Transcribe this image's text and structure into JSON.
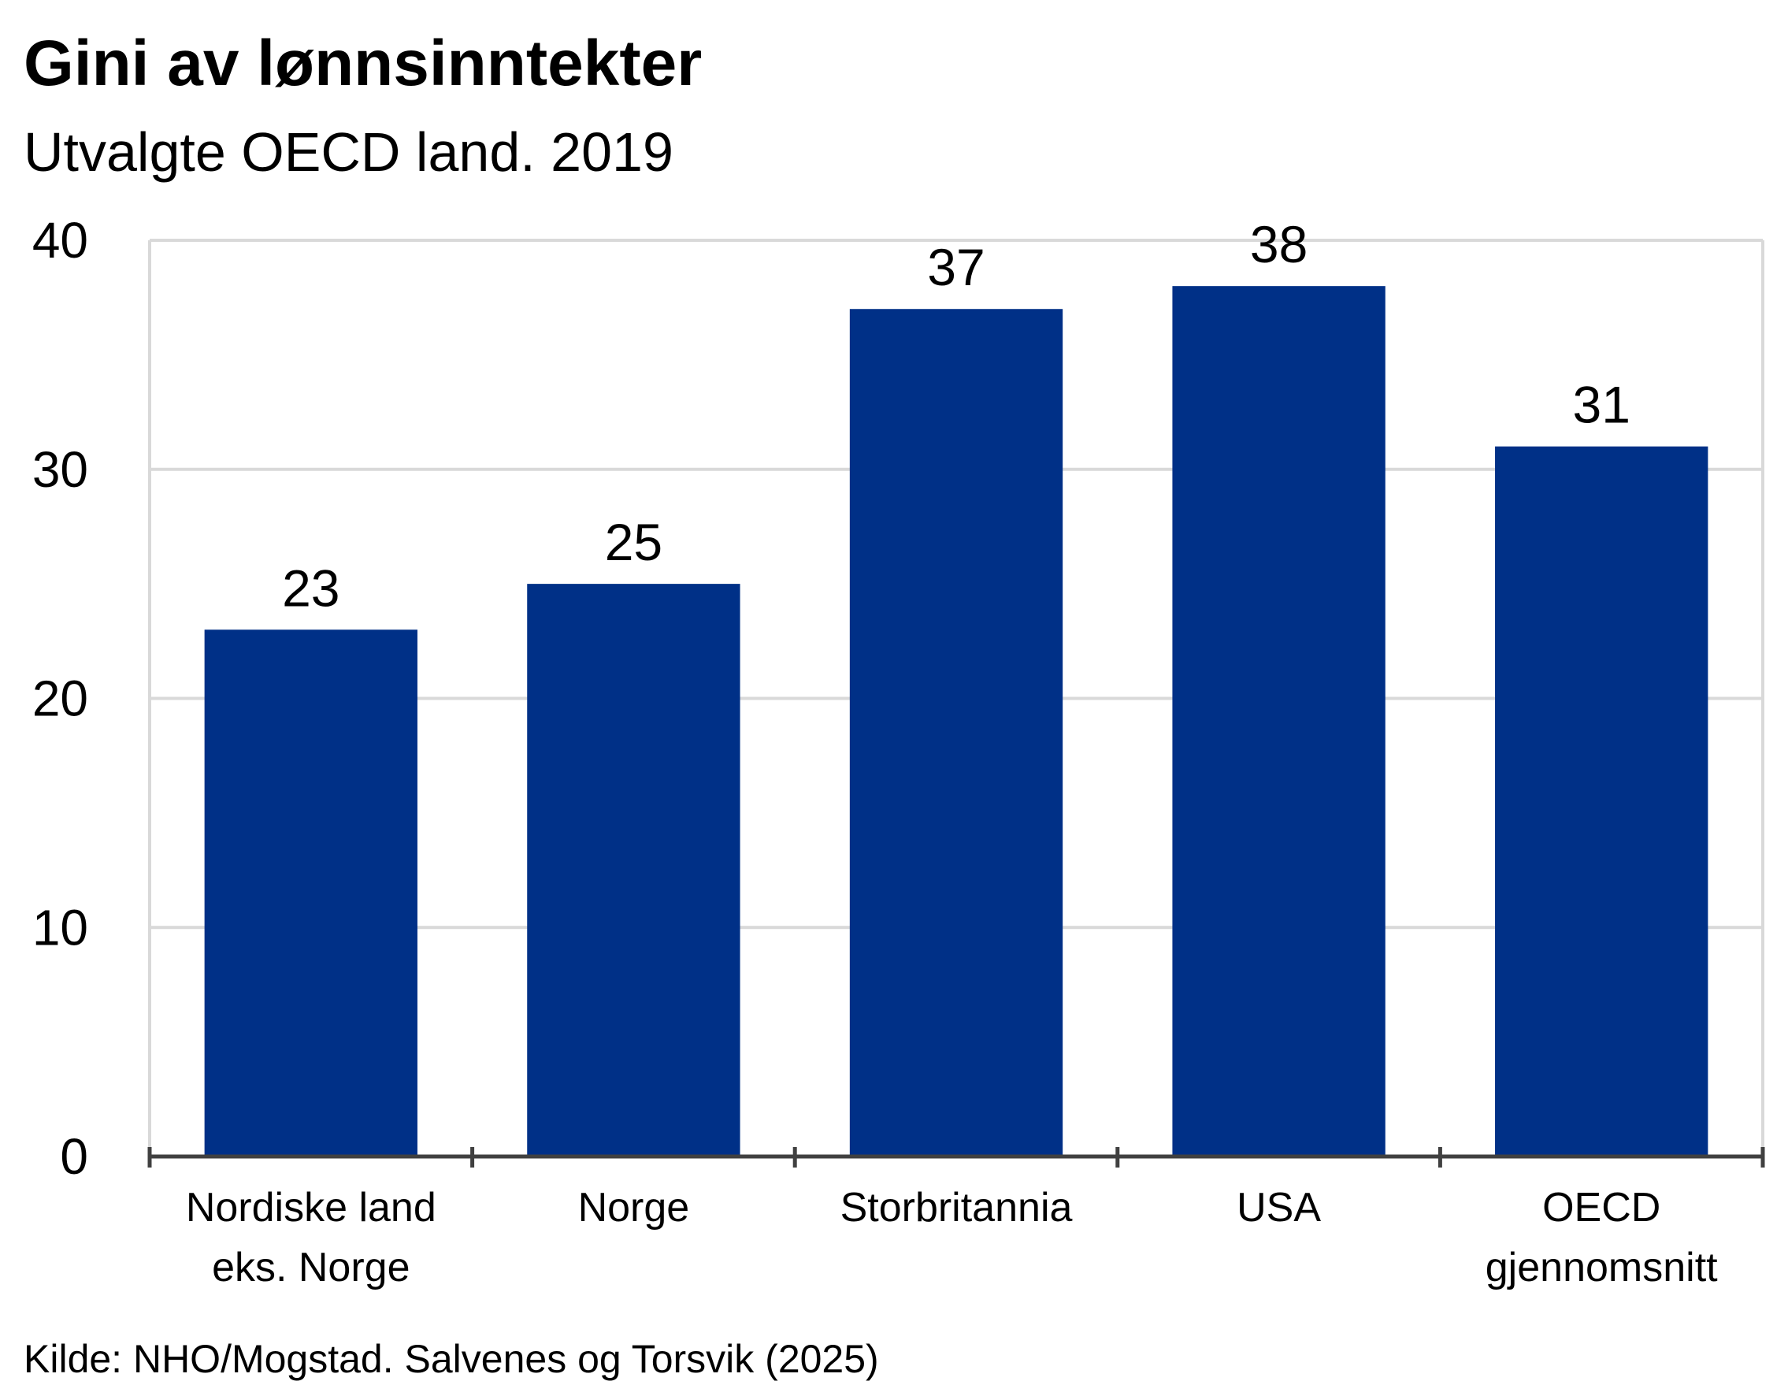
{
  "chart_data": {
    "type": "bar",
    "title": "Gini av lønnsinntekter",
    "subtitle": "Utvalgte OECD land. 2019",
    "source": "Kilde: NHO/Mogstad. Salvenes og Torsvik (2025)",
    "categories": [
      [
        "Nordiske land",
        "eks. Norge"
      ],
      [
        "Norge"
      ],
      [
        "Storbritannia"
      ],
      [
        "USA"
      ],
      [
        "OECD",
        "gjennomsnitt"
      ]
    ],
    "values": [
      23,
      25,
      37,
      38,
      31
    ],
    "value_labels": [
      "23",
      "25",
      "37",
      "38",
      "31"
    ],
    "yticks": [
      0,
      10,
      20,
      30,
      40
    ],
    "ylim": [
      0,
      40
    ],
    "grid": true,
    "legend": "none",
    "bar_color": "#003087",
    "grid_color": "#d9d9d9",
    "axis_color": "#404040"
  }
}
